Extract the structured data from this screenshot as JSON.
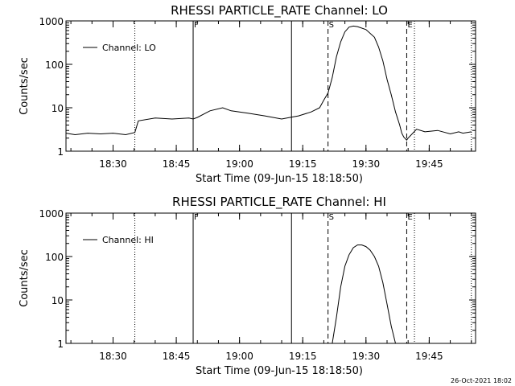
{
  "stamp": "26-Oct-2021 18:02",
  "chart_data": [
    {
      "type": "line",
      "title": "RHESSI PARTICLE_RATE Channel: LO",
      "xlabel": "Start Time (09-Jun-15 18:18:50)",
      "ylabel": "Counts/sec",
      "yscale": "log",
      "xlim": [
        "18:18:50",
        "19:56:00"
      ],
      "ylim": [
        1,
        1000
      ],
      "x_ticks": [
        "18:30",
        "18:45",
        "19:00",
        "19:15",
        "19:30",
        "19:45"
      ],
      "y_ticks": [
        "1",
        "10",
        "100",
        "1000"
      ],
      "legend": {
        "position": "top-left",
        "label": "Channel: LO"
      },
      "markers": [
        {
          "time": "18:35:10",
          "style": "dotted",
          "label": ""
        },
        {
          "time": "18:49:00",
          "style": "solid",
          "label": "F"
        },
        {
          "time": "19:12:20",
          "style": "solid",
          "label": ""
        },
        {
          "time": "19:21:00",
          "style": "dashed",
          "label": "S"
        },
        {
          "time": "19:39:40",
          "style": "dashed",
          "label": "E"
        },
        {
          "time": "19:41:30",
          "style": "dotted",
          "label": ""
        },
        {
          "time": "19:55:00",
          "style": "dotted",
          "label": ""
        }
      ],
      "x": [
        "18:18:50",
        "18:21:00",
        "18:24:00",
        "18:27:00",
        "18:30:00",
        "18:33:00",
        "18:35:10",
        "18:36:00",
        "18:40:00",
        "18:44:00",
        "18:48:00",
        "18:49:00",
        "18:50:00",
        "18:53:00",
        "18:56:00",
        "18:58:00",
        "19:02:00",
        "19:06:00",
        "19:10:00",
        "19:12:00",
        "19:14:00",
        "19:17:00",
        "19:19:00",
        "19:20:00",
        "19:21:00",
        "19:22:00",
        "19:23:00",
        "19:24:00",
        "19:25:00",
        "19:26:00",
        "19:27:00",
        "19:28:00",
        "19:30:00",
        "19:32:00",
        "19:33:00",
        "19:34:00",
        "19:35:00",
        "19:36:00",
        "19:37:00",
        "19:38:00",
        "19:38:30",
        "19:39:00",
        "19:39:40",
        "19:40:00",
        "19:42:00",
        "19:44:00",
        "19:47:00",
        "19:50:00",
        "19:52:00",
        "19:53:00",
        "19:55:00"
      ],
      "y": [
        2.6,
        2.4,
        2.6,
        2.5,
        2.6,
        2.4,
        2.7,
        5,
        5.8,
        5.5,
        5.8,
        5.5,
        6,
        8.5,
        10,
        8.5,
        7.5,
        6.5,
        5.5,
        6,
        6.5,
        8,
        10,
        15,
        22,
        50,
        150,
        330,
        560,
        720,
        760,
        740,
        630,
        420,
        250,
        120,
        45,
        20,
        8,
        4,
        2.6,
        2.1,
        1.8,
        2.0,
        3.2,
        2.8,
        3.0,
        2.5,
        2.8,
        2.6,
        2.8
      ]
    },
    {
      "type": "line",
      "title": "RHESSI PARTICLE_RATE Channel: HI",
      "xlabel": "Start Time (09-Jun-15 18:18:50)",
      "ylabel": "Counts/sec",
      "yscale": "log",
      "xlim": [
        "18:18:50",
        "19:56:00"
      ],
      "ylim": [
        1,
        1000
      ],
      "x_ticks": [
        "18:30",
        "18:45",
        "19:00",
        "19:15",
        "19:30",
        "19:45"
      ],
      "y_ticks": [
        "1",
        "10",
        "100",
        "1000"
      ],
      "legend": {
        "position": "top-left",
        "label": "Channel: HI"
      },
      "markers": [
        {
          "time": "18:35:10",
          "style": "dotted",
          "label": ""
        },
        {
          "time": "18:49:00",
          "style": "solid",
          "label": "F"
        },
        {
          "time": "19:12:20",
          "style": "solid",
          "label": ""
        },
        {
          "time": "19:21:00",
          "style": "dashed",
          "label": "S"
        },
        {
          "time": "19:39:40",
          "style": "dashed",
          "label": "E"
        },
        {
          "time": "19:41:30",
          "style": "dotted",
          "label": ""
        },
        {
          "time": "19:55:00",
          "style": "dotted",
          "label": ""
        }
      ],
      "x": [
        "19:22:00",
        "19:23:00",
        "19:24:00",
        "19:25:00",
        "19:26:00",
        "19:27:00",
        "19:28:00",
        "19:29:00",
        "19:30:00",
        "19:31:00",
        "19:32:00",
        "19:33:00",
        "19:34:00",
        "19:35:00",
        "19:36:00",
        "19:37:00"
      ],
      "y": [
        1,
        4,
        20,
        60,
        110,
        160,
        185,
        185,
        170,
        140,
        100,
        60,
        25,
        8,
        2.5,
        1
      ]
    }
  ]
}
